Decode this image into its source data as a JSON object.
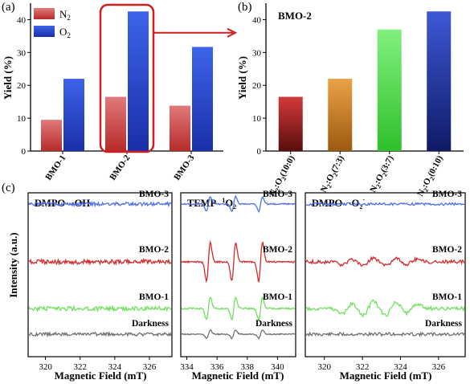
{
  "panels": {
    "a": {
      "label": "(a)"
    },
    "b": {
      "label": "(b)"
    },
    "c": {
      "label": "(c)"
    }
  },
  "chart_data": [
    {
      "id": "a",
      "type": "bar",
      "categories": [
        "BMO-1",
        "BMO-2",
        "BMO-3"
      ],
      "series": [
        {
          "name": "N2",
          "name_main": "N",
          "name_sub": "2",
          "color_top": "#e07a7a",
          "color_bottom": "#b82a2a",
          "values": [
            9.5,
            16.5,
            13.8
          ]
        },
        {
          "name": "O2",
          "name_main": "O",
          "name_sub": "2",
          "color_top": "#3d63ea",
          "color_bottom": "#1a2fa8",
          "values": [
            22.0,
            42.5,
            31.7
          ]
        }
      ],
      "title": "",
      "xlabel": "",
      "ylabel": "Yield (%)",
      "ylim": [
        0,
        45
      ],
      "yticks": [
        0,
        10,
        20,
        30,
        40
      ],
      "legend": "top-left",
      "highlight": {
        "category": "BMO-2",
        "color": "#cc1f1f"
      }
    },
    {
      "id": "b",
      "type": "bar",
      "title": "BMO-2",
      "categories": [
        "N2:O2(10:0)",
        "N2:O2(7:3)",
        "N2:O2(3:7)",
        "N2:O2(0:10)"
      ],
      "category_parts": [
        {
          "a": "N",
          "b": "O",
          "ratio": "(10:0)"
        },
        {
          "a": "N",
          "b": "O",
          "ratio": "(7:3)"
        },
        {
          "a": "N",
          "b": "O",
          "ratio": "(3:7)"
        },
        {
          "a": "N",
          "b": "O",
          "ratio": "(0:10)"
        }
      ],
      "sub": "2",
      "values": [
        16.5,
        22.0,
        37.0,
        42.5
      ],
      "colors": [
        {
          "top": "#d23a3a",
          "bottom": "#5a0d0d"
        },
        {
          "top": "#eba246",
          "bottom": "#9c5a10"
        },
        {
          "top": "#82f07e",
          "bottom": "#2fbf2c"
        },
        {
          "top": "#3e58d6",
          "bottom": "#0f1a66"
        }
      ],
      "xlabel": "",
      "ylabel": "Yield (%)",
      "ylim": [
        0,
        45
      ],
      "yticks": [
        0,
        10,
        20,
        30,
        40
      ]
    },
    {
      "id": "c1",
      "type": "line",
      "title": "DMPO- ·OH",
      "title_main": "DMPO- ·OH",
      "title_sup": "",
      "xlabel": "Magnetic Field (mT)",
      "ylabel": "Intensity (a.u.)",
      "xlim": [
        319,
        327.3
      ],
      "xticks": [
        320,
        322,
        324,
        326
      ],
      "series": [
        {
          "name": "BMO-3",
          "color": "#4f6fe8",
          "noise": 2.2,
          "signal": "none"
        },
        {
          "name": "BMO-2",
          "color": "#d42a2a",
          "noise": 2.8,
          "signal": "none"
        },
        {
          "name": "BMO-1",
          "color": "#6ee05c",
          "noise": 2.6,
          "signal": "none"
        },
        {
          "name": "Darkness",
          "color": "#707070",
          "noise": 2.0,
          "signal": "none"
        }
      ]
    },
    {
      "id": "c2",
      "type": "line",
      "title": "TEMP- 1O2",
      "title_main": "TEMP- ",
      "title_sup": "1",
      "title_tail": "O",
      "title_sub": "2",
      "xlabel": "Magnetic Field (mT)",
      "ylabel": "",
      "xlim": [
        333.6,
        341.2
      ],
      "xticks": [
        334,
        336,
        338,
        340
      ],
      "peaks": [
        335.4,
        337.1,
        338.9
      ],
      "series": [
        {
          "name": "BMO-3",
          "color": "#4f6fe8",
          "noise": 0.8,
          "amp": 9
        },
        {
          "name": "BMO-2",
          "color": "#d42a2a",
          "noise": 0.9,
          "amp": 24
        },
        {
          "name": "BMO-1",
          "color": "#6ee05c",
          "noise": 0.9,
          "amp": 14
        },
        {
          "name": "Darkness",
          "color": "#707070",
          "noise": 0.7,
          "amp": 5
        }
      ]
    },
    {
      "id": "c3",
      "type": "line",
      "title": "DMPO- ·O2-",
      "title_main": "DMPO- ·O",
      "title_sub": "2",
      "title_sup": "-",
      "xlabel": "Magnetic Field (mT)",
      "ylabel": "",
      "xlim": [
        319,
        327.4
      ],
      "xticks": [
        320,
        322,
        324,
        326
      ],
      "series": [
        {
          "name": "BMO-3",
          "color": "#4f6fe8",
          "noise": 1.6,
          "amp": 0
        },
        {
          "name": "BMO-2",
          "color": "#d42a2a",
          "noise": 2.2,
          "amp": 5
        },
        {
          "name": "BMO-1",
          "color": "#6ee05c",
          "noise": 2.2,
          "amp": 9
        },
        {
          "name": "Darkness",
          "color": "#707070",
          "noise": 2.0,
          "amp": 0
        }
      ]
    }
  ]
}
